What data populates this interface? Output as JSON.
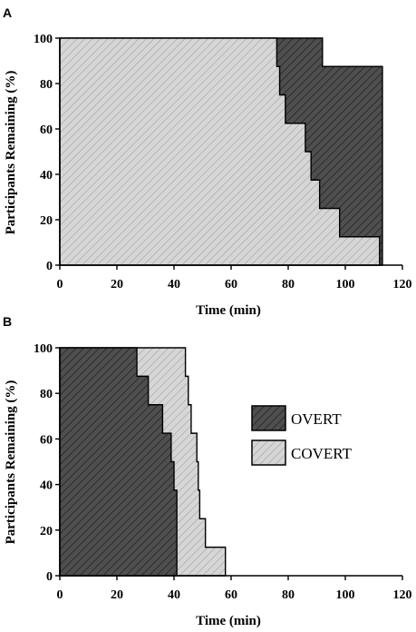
{
  "chart_data": [
    {
      "panel_label": "A",
      "type": "area",
      "chart_kind": "step survival curves (participants remaining vs time)",
      "xlabel": "Time (min)",
      "ylabel": "Participants Remaining (%)",
      "xlim": [
        0,
        120
      ],
      "ylim": [
        0,
        100
      ],
      "x_ticks": [
        0,
        20,
        40,
        60,
        80,
        100,
        120
      ],
      "y_ticks": [
        0,
        20,
        40,
        60,
        80,
        100
      ],
      "grid": false,
      "series": [
        {
          "name": "OVERT",
          "fill": "dark",
          "steps": [
            [
              0,
              100
            ],
            [
              92,
              87.5
            ],
            [
              113,
              0
            ]
          ]
        },
        {
          "name": "COVERT",
          "fill": "light",
          "steps": [
            [
              0,
              100
            ],
            [
              76,
              87.5
            ],
            [
              77,
              75
            ],
            [
              79,
              62.5
            ],
            [
              86,
              50
            ],
            [
              88,
              37.5
            ],
            [
              91,
              25
            ],
            [
              98,
              12.5
            ],
            [
              112,
              0
            ]
          ]
        }
      ]
    },
    {
      "panel_label": "B",
      "type": "area",
      "chart_kind": "step survival curves (participants remaining vs time)",
      "xlabel": "Time (min)",
      "ylabel": "Participants Remaining (%)",
      "xlim": [
        0,
        120
      ],
      "ylim": [
        0,
        100
      ],
      "x_ticks": [
        0,
        20,
        40,
        60,
        80,
        100,
        120
      ],
      "y_ticks": [
        0,
        20,
        40,
        60,
        80,
        100
      ],
      "grid": false,
      "legend": {
        "placement": "center-right",
        "entries": [
          {
            "label": "OVERT",
            "fill": "dark"
          },
          {
            "label": "COVERT",
            "fill": "light"
          }
        ]
      },
      "series": [
        {
          "name": "COVERT",
          "fill": "light",
          "steps": [
            [
              0,
              100
            ],
            [
              44,
              87.5
            ],
            [
              45,
              75
            ],
            [
              46,
              62.5
            ],
            [
              48,
              50
            ],
            [
              48.5,
              37.5
            ],
            [
              49,
              25
            ],
            [
              51,
              12.5
            ],
            [
              58,
              0
            ]
          ]
        },
        {
          "name": "OVERT",
          "fill": "dark",
          "steps": [
            [
              0,
              100
            ],
            [
              27,
              87.5
            ],
            [
              31,
              75
            ],
            [
              36,
              62.5
            ],
            [
              39,
              50
            ],
            [
              40,
              37.5
            ],
            [
              41,
              0
            ]
          ]
        }
      ]
    }
  ],
  "colors": {
    "dark_fill": "#4f4f4f",
    "dark_hatch": "#2e2e2e",
    "light_fill": "#d6d6d6",
    "light_hatch": "#a8a8a8",
    "axis": "#000000"
  }
}
